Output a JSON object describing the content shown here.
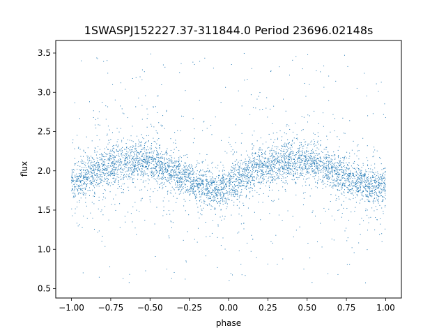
{
  "chart_data": {
    "type": "scatter",
    "title": "1SWASPJ152227.37-311844.0 Period 23696.02148s",
    "xlabel": "phase",
    "ylabel": "flux",
    "xlim": [
      -1.1,
      1.1
    ],
    "ylim": [
      0.38,
      3.66
    ],
    "xticks": [
      -1.0,
      -0.75,
      -0.5,
      -0.25,
      0.0,
      0.25,
      0.5,
      0.75,
      1.0
    ],
    "xtick_labels": [
      "−1.00",
      "−0.75",
      "−0.50",
      "−0.25",
      "0.00",
      "0.25",
      "0.50",
      "0.75",
      "1.00"
    ],
    "yticks": [
      0.5,
      1.0,
      1.5,
      2.0,
      2.5,
      3.0,
      3.5
    ],
    "ytick_labels": [
      "0.5",
      "1.0",
      "1.5",
      "2.0",
      "2.5",
      "3.0",
      "3.5"
    ],
    "grid": false,
    "legend": false,
    "marker_color": "#1f77b4",
    "profile": {
      "phase": [
        -1.0,
        -0.95,
        -0.9,
        -0.85,
        -0.8,
        -0.75,
        -0.7,
        -0.65,
        -0.6,
        -0.55,
        -0.5,
        -0.45,
        -0.4,
        -0.35,
        -0.3,
        -0.25,
        -0.2,
        -0.15,
        -0.1,
        -0.05,
        0.0,
        0.05,
        0.1,
        0.15,
        0.2,
        0.25,
        0.3,
        0.35,
        0.4,
        0.45,
        0.5,
        0.55,
        0.6,
        0.65,
        0.7,
        0.75,
        0.8,
        0.85,
        0.9,
        0.95,
        1.0
      ],
      "flux": [
        1.85,
        1.88,
        1.93,
        1.98,
        2.03,
        2.07,
        2.1,
        2.12,
        2.13,
        2.12,
        2.1,
        2.07,
        2.03,
        1.98,
        1.93,
        1.88,
        1.83,
        1.79,
        1.77,
        1.78,
        1.82,
        1.88,
        1.94,
        2.0,
        2.04,
        2.07,
        2.1,
        2.12,
        2.13,
        2.13,
        2.12,
        2.1,
        2.07,
        2.03,
        1.98,
        1.93,
        1.88,
        1.84,
        1.81,
        1.8,
        1.82
      ],
      "scatter_core": 0.12,
      "scatter_outlier_range": [
        0.55,
        3.5
      ]
    }
  }
}
